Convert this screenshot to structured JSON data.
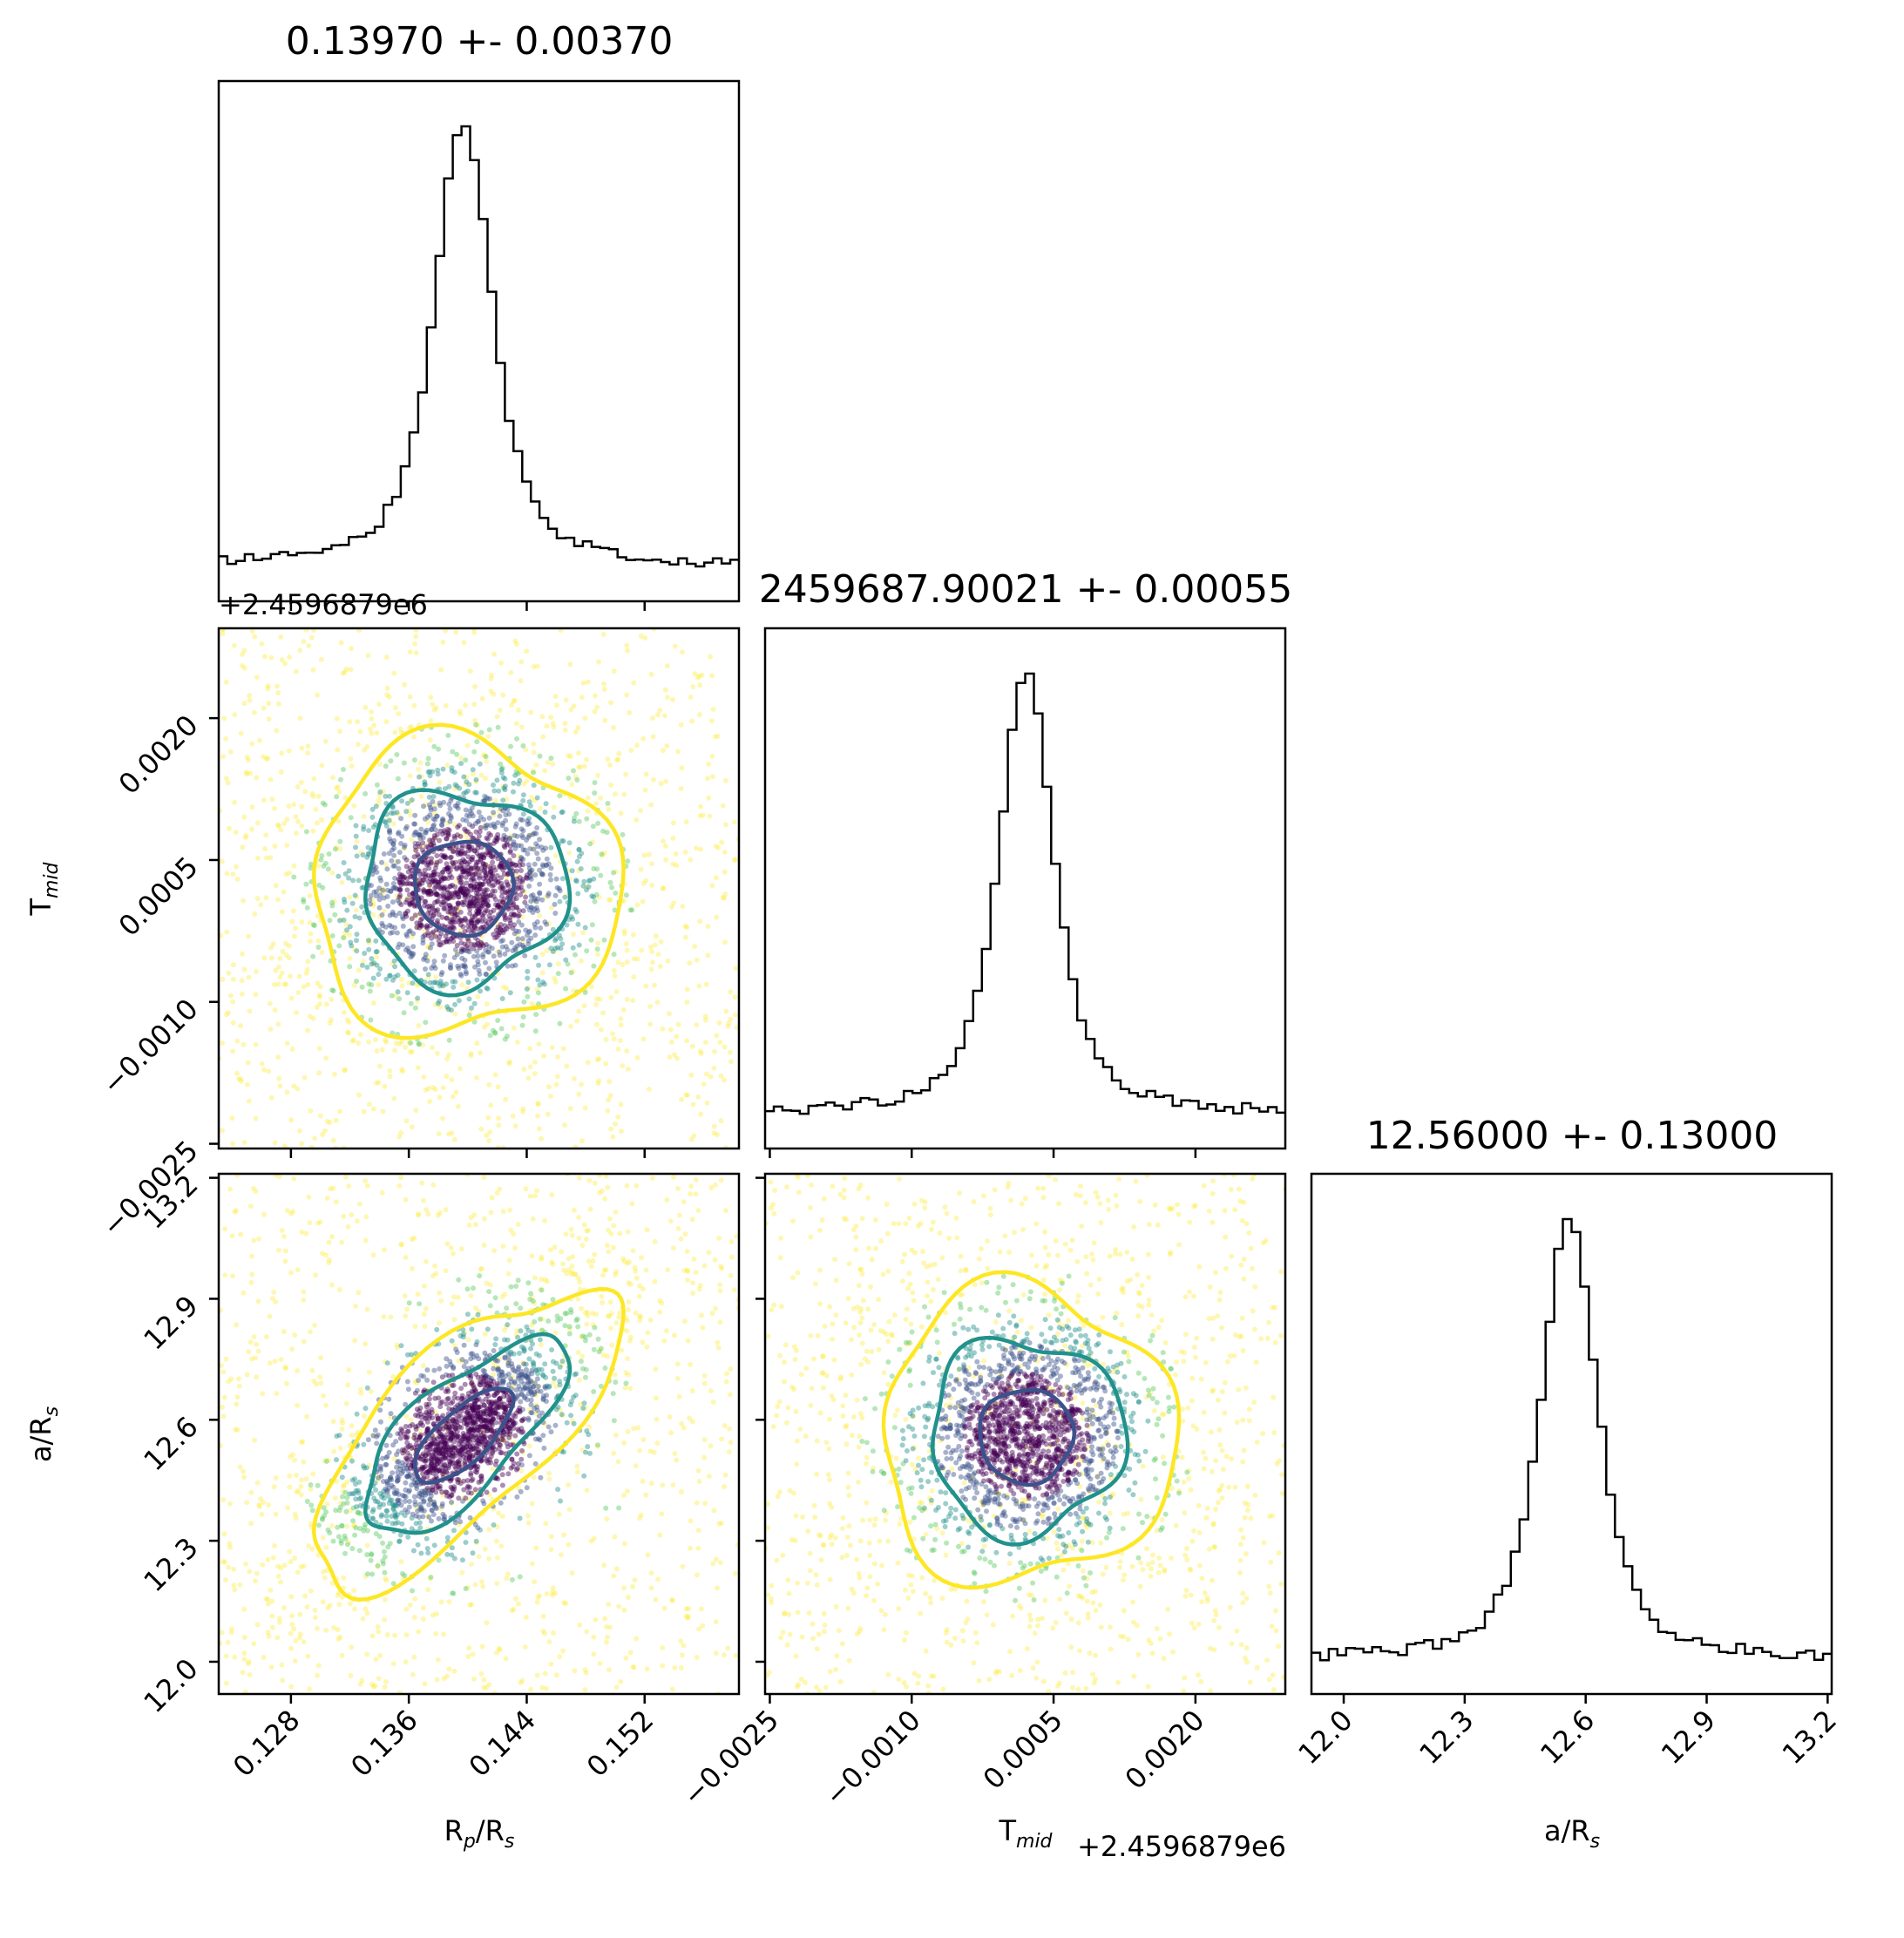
{
  "chart_data": {
    "type": "corner",
    "parameters": [
      {
        "name": "Rp/Rs",
        "label_main": "R",
        "label_sub": "p",
        "label_tail": "/R",
        "label_sub2": "s",
        "median": 0.1397,
        "sigma": 0.0037,
        "range": [
          0.1231,
          0.1584
        ],
        "ticks": [
          0.128,
          0.136,
          0.144,
          0.152
        ],
        "tick_labels": [
          "0.128",
          "0.136",
          "0.144",
          "0.152"
        ]
      },
      {
        "name": "Tmid",
        "label_main": "T",
        "label_sub": "mid",
        "label_tail": "",
        "label_sub2": "",
        "median": 0.00021,
        "sigma": 0.00055,
        "range": [
          -0.00255,
          0.00295
        ],
        "ticks": [
          -0.0025,
          -0.001,
          0.0005,
          0.002
        ],
        "tick_labels": [
          "−0.0025",
          "−0.0010",
          "0.0005",
          "0.0020"
        ],
        "offset_text": "+2.4596879e6"
      },
      {
        "name": "a/Rs",
        "label_main": "a/R",
        "label_sub": "s",
        "label_tail": "",
        "label_sub2": "",
        "median": 12.56,
        "sigma": 0.13,
        "range": [
          11.92,
          13.21
        ],
        "ticks": [
          12.0,
          12.3,
          12.6,
          12.9,
          13.2
        ],
        "tick_labels": [
          "12.0",
          "12.3",
          "12.6",
          "12.9",
          "13.2"
        ]
      }
    ],
    "titles": [
      "0.13970 +- 0.00370",
      "2459687.90021 +- 0.00055",
      "12.56000 +- 0.13000"
    ],
    "contour_levels": [
      "1-sigma",
      "2-sigma",
      "3-sigma"
    ],
    "contour_colors": [
      "#3b528b",
      "#21918c",
      "#fde725"
    ],
    "scatter_colors": [
      "#440154",
      "#3b528b",
      "#21918c",
      "#5ec962",
      "#fde725"
    ],
    "correlations": {
      "rp_tmid": 0.0,
      "rp_ars": 0.72,
      "tmid_ars": 0.0
    },
    "histogram": "peaked core with broad flat wings",
    "grid": false
  }
}
